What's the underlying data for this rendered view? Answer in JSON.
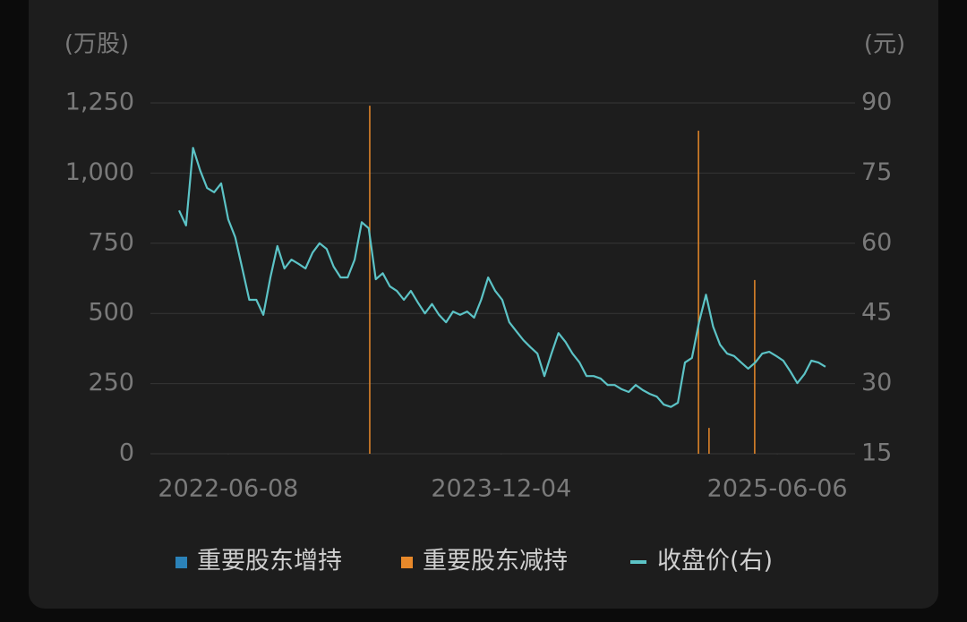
{
  "chart_data": {
    "type": "combo",
    "ylabel": "(万股)",
    "y2label": "(元)",
    "xlim": [
      "2022-01-04",
      "2025-11-08"
    ],
    "xticks": [
      "2022-06-08",
      "2023-12-04",
      "2025-06-06"
    ],
    "ylim": [
      0,
      1250
    ],
    "yticks": [
      0,
      250,
      500,
      750,
      {
        "value": 1000,
        "label": "1,000"
      },
      {
        "value": 1250,
        "label": "1,250"
      }
    ],
    "y2lim": [
      15,
      90
    ],
    "y2ticks": [
      15,
      30,
      45,
      60,
      75,
      90
    ],
    "grid": true,
    "legend": "bottom",
    "series": [
      {
        "name": "重要股东增持",
        "type": "bar",
        "color": "#2b82b8",
        "x": [],
        "values": []
      },
      {
        "name": "重要股东减持",
        "type": "bar",
        "color": "#e8892a",
        "x": [
          "2023-03-17",
          "2024-12-31",
          "2025-01-21",
          "2025-04-22"
        ],
        "values": [
          1240,
          1151,
          92,
          619
        ]
      },
      {
        "name": "收盘价(右)",
        "type": "line",
        "axis": "y2",
        "color": "#5cc3c6",
        "x": [
          "2022-03-02",
          "2022-03-16",
          "2022-03-30",
          "2022-04-13",
          "2022-04-27",
          "2022-05-11",
          "2022-05-25",
          "2022-06-08",
          "2022-06-22",
          "2022-07-06",
          "2022-07-20",
          "2022-08-03",
          "2022-08-17",
          "2022-08-31",
          "2022-09-14",
          "2022-09-28",
          "2022-10-12",
          "2022-10-26",
          "2022-11-09",
          "2022-11-23",
          "2022-12-07",
          "2022-12-21",
          "2023-01-04",
          "2023-01-18",
          "2023-02-01",
          "2023-02-15",
          "2023-03-01",
          "2023-03-15",
          "2023-03-29",
          "2023-04-12",
          "2023-04-26",
          "2023-05-10",
          "2023-05-24",
          "2023-06-07",
          "2023-06-21",
          "2023-07-05",
          "2023-07-19",
          "2023-08-02",
          "2023-08-16",
          "2023-08-30",
          "2023-09-13",
          "2023-09-27",
          "2023-10-11",
          "2023-10-25",
          "2023-11-08",
          "2023-11-22",
          "2023-12-06",
          "2023-12-20",
          "2024-01-03",
          "2024-01-17",
          "2024-01-31",
          "2024-02-14",
          "2024-02-28",
          "2024-03-13",
          "2024-03-27",
          "2024-04-10",
          "2024-04-24",
          "2024-05-08",
          "2024-05-22",
          "2024-06-05",
          "2024-06-19",
          "2024-07-03",
          "2024-07-17",
          "2024-07-31",
          "2024-08-14",
          "2024-08-28",
          "2024-09-11",
          "2024-09-25",
          "2024-10-09",
          "2024-10-23",
          "2024-11-06",
          "2024-11-20",
          "2024-12-04",
          "2024-12-18",
          "2025-01-01",
          "2025-01-15",
          "2025-01-29",
          "2025-02-12",
          "2025-02-26",
          "2025-03-12",
          "2025-03-26",
          "2025-04-09",
          "2025-04-23",
          "2025-05-07",
          "2025-05-21",
          "2025-06-04",
          "2025-06-18",
          "2025-07-02",
          "2025-07-16",
          "2025-07-30",
          "2025-08-13",
          "2025-08-27",
          "2025-09-10"
        ],
        "values": [
          67.0,
          63.8,
          80.4,
          75.6,
          71.8,
          70.9,
          72.8,
          65.1,
          61.3,
          54.6,
          47.9,
          47.9,
          44.7,
          52.7,
          59.4,
          54.6,
          56.5,
          55.6,
          54.6,
          58.0,
          60.0,
          58.8,
          55.0,
          52.7,
          52.7,
          56.5,
          64.5,
          63.2,
          52.3,
          53.6,
          50.8,
          49.8,
          47.9,
          49.8,
          47.3,
          45.0,
          47.0,
          44.7,
          43.1,
          45.4,
          44.7,
          45.4,
          44.1,
          47.9,
          52.7,
          49.8,
          47.9,
          43.1,
          41.2,
          39.3,
          37.8,
          36.4,
          31.6,
          36.4,
          40.8,
          38.9,
          36.4,
          34.5,
          31.6,
          31.6,
          31.1,
          29.7,
          29.7,
          28.8,
          28.2,
          29.7,
          28.6,
          27.8,
          27.2,
          25.5,
          25.0,
          25.9,
          34.5,
          35.5,
          43.1,
          49.0,
          42.2,
          38.3,
          36.4,
          35.9,
          34.5,
          33.2,
          34.5,
          36.4,
          36.8,
          35.9,
          34.9,
          32.6,
          30.1,
          32.0,
          34.9,
          34.5,
          33.6
        ]
      }
    ]
  }
}
